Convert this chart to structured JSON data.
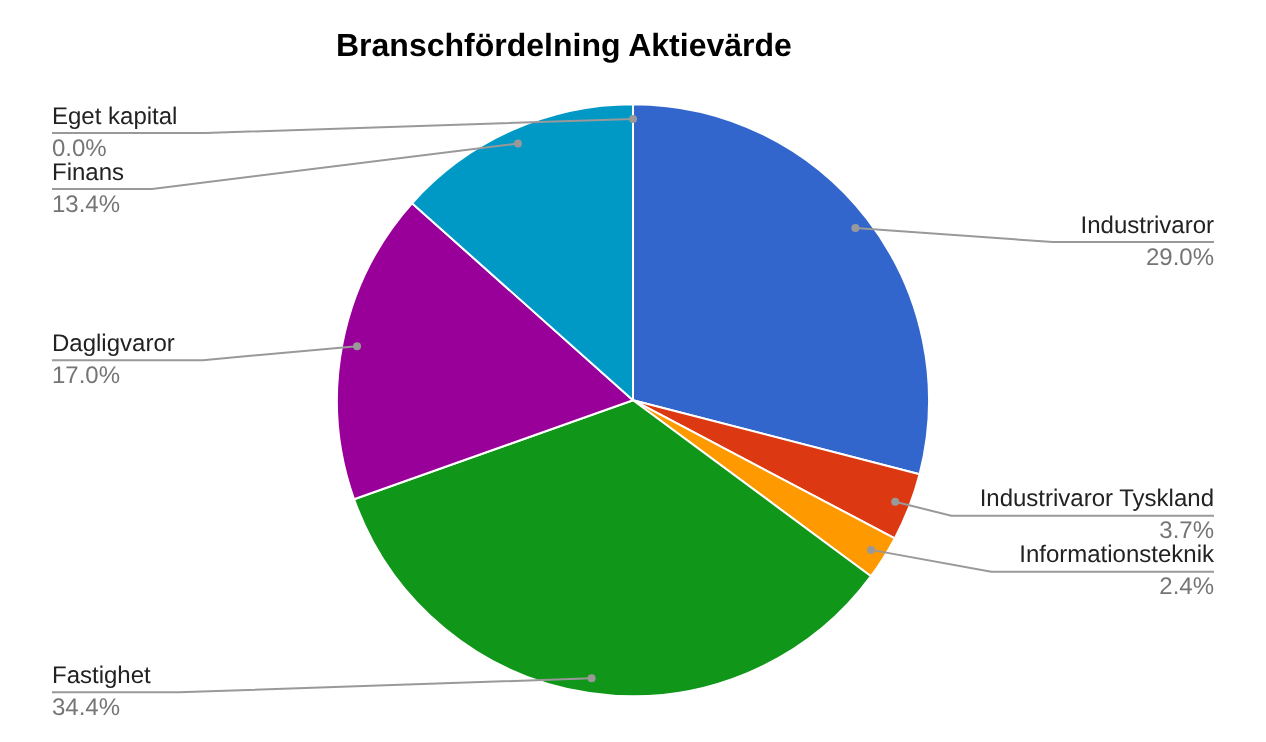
{
  "chart_data": {
    "type": "pie",
    "title": "Branschfördelning Aktievärde",
    "categories": [
      "Industrivaror",
      "Industrivaror Tyskland",
      "Informationsteknik",
      "Fastighet",
      "Dagligvaror",
      "Finans",
      "Eget kapital"
    ],
    "values": [
      29.0,
      3.7,
      2.4,
      34.4,
      17.0,
      13.4,
      0.0
    ],
    "value_labels": [
      "29.0%",
      "3.7%",
      "2.4%",
      "34.4%",
      "17.0%",
      "13.4%",
      "0.0%"
    ],
    "colors": [
      "#3366cc",
      "#dc3912",
      "#ff9900",
      "#109618",
      "#990099",
      "#0099c6",
      "#dd4477"
    ],
    "legend": false
  }
}
